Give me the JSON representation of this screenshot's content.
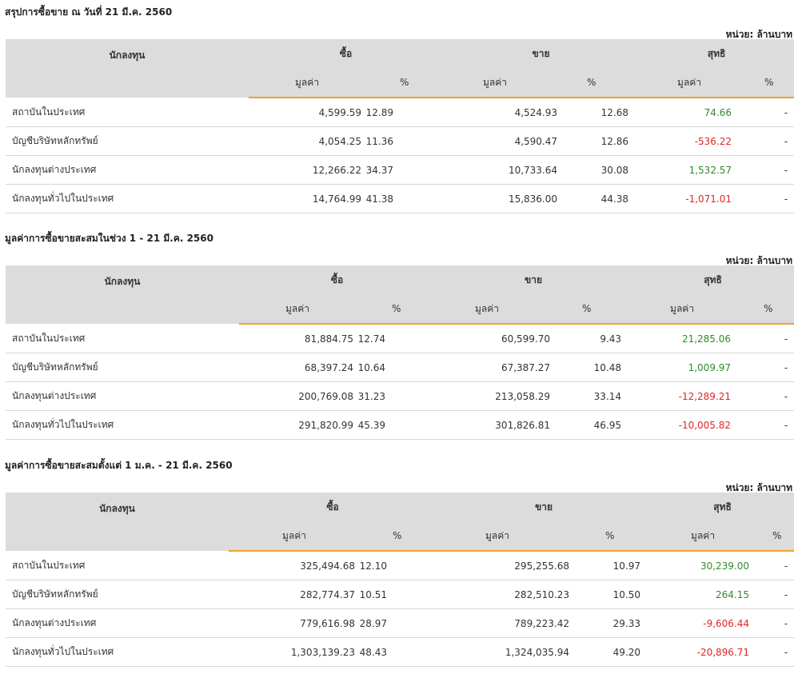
{
  "unit_label": "หน่วย: ล้านบาท",
  "headers": {
    "investor": "นักลงทุน",
    "buy": "ซื้อ",
    "sell": "ขาย",
    "net": "สุทธิ",
    "value": "มูลค่า",
    "percent": "%"
  },
  "sections": [
    {
      "title": "สรุปการซื้อขาย ณ วันที่ 21 มี.ค. 2560",
      "rows": [
        {
          "name": "สถาบันในประเทศ",
          "buy_value": "4,599.59",
          "buy_pct": "12.89",
          "sell_value": "4,524.93",
          "sell_pct": "12.68",
          "net_value": "74.66",
          "net_pct": "-",
          "net_sign": "pos"
        },
        {
          "name": "บัญชีบริษัทหลักทรัพย์",
          "buy_value": "4,054.25",
          "buy_pct": "11.36",
          "sell_value": "4,590.47",
          "sell_pct": "12.86",
          "net_value": "-536.22",
          "net_pct": "-",
          "net_sign": "neg"
        },
        {
          "name": "นักลงทุนต่างประเทศ",
          "buy_value": "12,266.22",
          "buy_pct": "34.37",
          "sell_value": "10,733.64",
          "sell_pct": "30.08",
          "net_value": "1,532.57",
          "net_pct": "-",
          "net_sign": "pos"
        },
        {
          "name": "นักลงทุนทั่วไปในประเทศ",
          "buy_value": "14,764.99",
          "buy_pct": "41.38",
          "sell_value": "15,836.00",
          "sell_pct": "44.38",
          "net_value": "-1,071.01",
          "net_pct": "-",
          "net_sign": "neg"
        }
      ]
    },
    {
      "title": "มูลค่าการซื้อขายสะสมในช่วง 1 - 21 มี.ค. 2560",
      "rows": [
        {
          "name": "สถาบันในประเทศ",
          "buy_value": "81,884.75",
          "buy_pct": "12.74",
          "sell_value": "60,599.70",
          "sell_pct": "9.43",
          "net_value": "21,285.06",
          "net_pct": "-",
          "net_sign": "pos"
        },
        {
          "name": "บัญชีบริษัทหลักทรัพย์",
          "buy_value": "68,397.24",
          "buy_pct": "10.64",
          "sell_value": "67,387.27",
          "sell_pct": "10.48",
          "net_value": "1,009.97",
          "net_pct": "-",
          "net_sign": "pos"
        },
        {
          "name": "นักลงทุนต่างประเทศ",
          "buy_value": "200,769.08",
          "buy_pct": "31.23",
          "sell_value": "213,058.29",
          "sell_pct": "33.14",
          "net_value": "-12,289.21",
          "net_pct": "-",
          "net_sign": "neg"
        },
        {
          "name": "นักลงทุนทั่วไปในประเทศ",
          "buy_value": "291,820.99",
          "buy_pct": "45.39",
          "sell_value": "301,826.81",
          "sell_pct": "46.95",
          "net_value": "-10,005.82",
          "net_pct": "-",
          "net_sign": "neg"
        }
      ]
    },
    {
      "title": "มูลค่าการซื้อขายสะสมตั้งแต่ 1 ม.ค. - 21 มี.ค. 2560",
      "rows": [
        {
          "name": "สถาบันในประเทศ",
          "buy_value": "325,494.68",
          "buy_pct": "12.10",
          "sell_value": "295,255.68",
          "sell_pct": "10.97",
          "net_value": "30,239.00",
          "net_pct": "-",
          "net_sign": "pos"
        },
        {
          "name": "บัญชีบริษัทหลักทรัพย์",
          "buy_value": "282,774.37",
          "buy_pct": "10.51",
          "sell_value": "282,510.23",
          "sell_pct": "10.50",
          "net_value": "264.15",
          "net_pct": "-",
          "net_sign": "pos"
        },
        {
          "name": "นักลงทุนต่างประเทศ",
          "buy_value": "779,616.98",
          "buy_pct": "28.97",
          "sell_value": "789,223.42",
          "sell_pct": "29.33",
          "net_value": "-9,606.44",
          "net_pct": "-",
          "net_sign": "neg"
        },
        {
          "name": "นักลงทุนทั่วไปในประเทศ",
          "buy_value": "1,303,139.23",
          "buy_pct": "48.43",
          "sell_value": "1,324,035.94",
          "sell_pct": "49.20",
          "net_value": "-20,896.71",
          "net_pct": "-",
          "net_sign": "neg"
        }
      ]
    }
  ]
}
